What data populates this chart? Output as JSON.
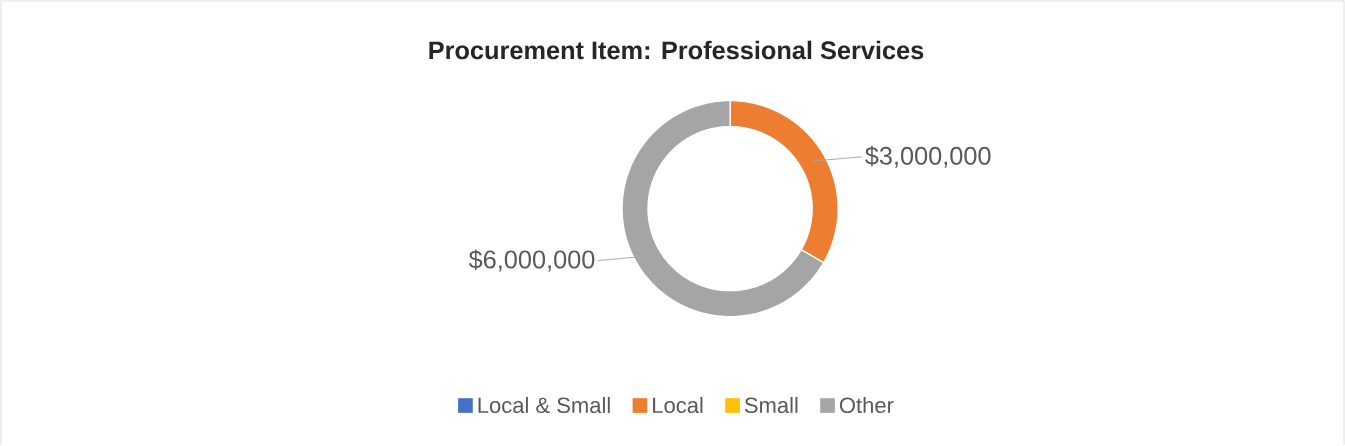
{
  "chart_data": {
    "type": "donut",
    "title": "Procurement Item: Professional Services",
    "categories": [
      "Local & Small",
      "Local",
      "Small",
      "Other"
    ],
    "values": [
      0,
      3000000,
      0,
      6000000
    ],
    "colors": [
      "#4472c4",
      "#ed7d31",
      "#ffc000",
      "#a5a5a5"
    ],
    "value_labels": [
      null,
      "$3,000,000",
      null,
      "$6,000,000"
    ],
    "legend": "bottom"
  }
}
